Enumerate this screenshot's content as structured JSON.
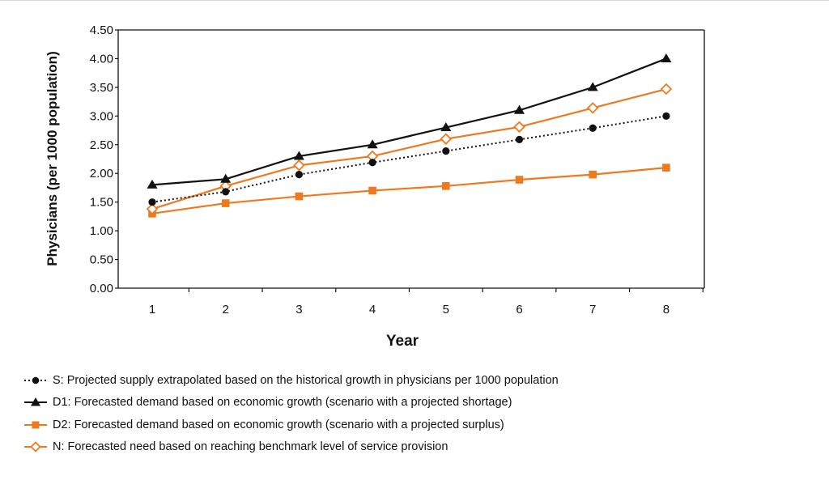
{
  "chart_data": {
    "type": "line",
    "title": "",
    "xlabel": "Year",
    "ylabel": "Physicians (per 1000 population)",
    "categories": [
      "1",
      "2",
      "3",
      "4",
      "5",
      "6",
      "7",
      "8"
    ],
    "x": [
      1,
      2,
      3,
      4,
      5,
      6,
      7,
      8
    ],
    "ylim": [
      0,
      4.5
    ],
    "yticks": [
      "0.00",
      "0.50",
      "1.00",
      "1.50",
      "2.00",
      "2.50",
      "3.00",
      "3.50",
      "4.00",
      "4.50"
    ],
    "grid": false,
    "legend_position": "bottom-left",
    "series": [
      {
        "key": "s",
        "name": "S: Projected supply extrapolated based on the historical growth in physicians per 1000 population",
        "values": [
          1.5,
          1.68,
          1.98,
          2.19,
          2.39,
          2.59,
          2.79,
          3.0
        ],
        "color": "#111111",
        "line_style": "dotted",
        "marker": "circle-filled"
      },
      {
        "key": "d1",
        "name": "D1: Forecasted demand based on economic growth (scenario with a projected shortage)",
        "values": [
          1.8,
          1.9,
          2.3,
          2.5,
          2.8,
          3.1,
          3.5,
          4.0
        ],
        "color": "#111111",
        "line_style": "solid",
        "marker": "triangle-filled"
      },
      {
        "key": "d2",
        "name": "D2: Forecasted demand based on economic growth (scenario with a projected surplus)",
        "values": [
          1.3,
          1.48,
          1.6,
          1.7,
          1.78,
          1.89,
          1.98,
          2.1
        ],
        "color": "#ee7a1f",
        "line_style": "solid",
        "marker": "square-filled"
      },
      {
        "key": "n",
        "name": "N: Forecasted need based on reaching benchmark level of service provision",
        "values": [
          1.38,
          1.78,
          2.14,
          2.3,
          2.6,
          2.81,
          3.14,
          3.47
        ],
        "color": "#ee7a1f",
        "line_style": "solid",
        "marker": "diamond-open"
      }
    ]
  }
}
